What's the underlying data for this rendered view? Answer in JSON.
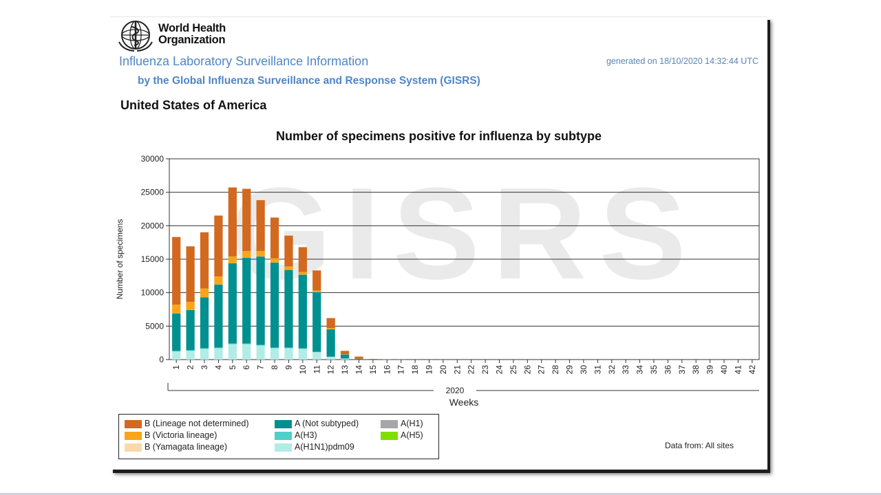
{
  "header": {
    "org_line1": "World Health",
    "org_line2": "Organization",
    "title": "Influenza Laboratory Surveillance Information",
    "subtitle": "by the Global Influenza Surveillance and Response System (GISRS)",
    "generated": "generated on 18/10/2020 14:32:44 UTC",
    "country": "United States of America"
  },
  "footer": {
    "data_from": "Data from: All sites"
  },
  "chart_data": {
    "type": "bar",
    "stacked": true,
    "title": "Number of specimens positive for influenza by subtype",
    "xlabel": "Weeks",
    "ylabel": "Number of specimens",
    "year_label": "2020",
    "watermark": "GISRS",
    "ylim": [
      0,
      30000
    ],
    "yticks": [
      "0",
      "5000",
      "10000",
      "15000",
      "20000",
      "25000",
      "30000"
    ],
    "grid": true,
    "categories": [
      "1",
      "2",
      "3",
      "4",
      "5",
      "6",
      "7",
      "8",
      "9",
      "10",
      "11",
      "12",
      "13",
      "14",
      "15",
      "16",
      "17",
      "18",
      "19",
      "20",
      "21",
      "22",
      "23",
      "24",
      "25",
      "26",
      "27",
      "28",
      "29",
      "30",
      "31",
      "32",
      "33",
      "34",
      "35",
      "36",
      "37",
      "38",
      "39",
      "40",
      "41",
      "42"
    ],
    "series": [
      {
        "name": "A(H1N1)pdm09",
        "color": "#b2ece6",
        "values": [
          1200,
          1300,
          1600,
          1700,
          2300,
          2300,
          2100,
          1700,
          1700,
          1600,
          1100,
          400,
          150,
          30,
          10,
          5,
          0,
          0,
          0,
          0,
          0,
          0,
          0,
          0,
          0,
          0,
          0,
          0,
          0,
          0,
          0,
          0,
          0,
          0,
          0,
          0,
          0,
          0,
          0,
          0,
          0,
          0
        ]
      },
      {
        "name": "A(H3)",
        "color": "#4dd0c8",
        "values": [
          100,
          100,
          100,
          100,
          100,
          100,
          100,
          100,
          100,
          80,
          60,
          30,
          10,
          5,
          0,
          0,
          0,
          0,
          0,
          0,
          0,
          0,
          0,
          0,
          0,
          0,
          0,
          0,
          0,
          0,
          0,
          0,
          0,
          0,
          0,
          0,
          0,
          0,
          0,
          0,
          0,
          0
        ]
      },
      {
        "name": "A (Not subtyped)",
        "color": "#009090",
        "values": [
          5600,
          6000,
          7600,
          9400,
          12000,
          12800,
          13200,
          12700,
          11600,
          11000,
          8900,
          4100,
          600,
          100,
          30,
          10,
          5,
          0,
          0,
          0,
          0,
          0,
          0,
          0,
          0,
          0,
          0,
          0,
          0,
          0,
          0,
          0,
          0,
          0,
          0,
          0,
          0,
          0,
          0,
          0,
          0,
          0
        ]
      },
      {
        "name": "A(H1)",
        "color": "#a6a6a6",
        "values": [
          0,
          0,
          0,
          0,
          0,
          0,
          0,
          0,
          0,
          0,
          0,
          0,
          0,
          0,
          0,
          0,
          0,
          0,
          0,
          0,
          0,
          0,
          0,
          0,
          0,
          0,
          0,
          0,
          0,
          0,
          0,
          0,
          0,
          0,
          0,
          0,
          0,
          0,
          0,
          0,
          0,
          0
        ]
      },
      {
        "name": "A(H5)",
        "color": "#7fe000",
        "values": [
          0,
          0,
          0,
          0,
          0,
          0,
          0,
          0,
          0,
          0,
          0,
          0,
          0,
          0,
          0,
          0,
          0,
          0,
          0,
          0,
          0,
          0,
          0,
          0,
          0,
          0,
          0,
          0,
          0,
          0,
          0,
          0,
          0,
          0,
          0,
          0,
          0,
          0,
          0,
          0,
          0,
          0
        ]
      },
      {
        "name": "B (Yamagata lineage)",
        "color": "#fcd9a8",
        "values": [
          20,
          20,
          20,
          20,
          20,
          20,
          20,
          20,
          20,
          20,
          10,
          10,
          0,
          0,
          0,
          0,
          0,
          0,
          0,
          0,
          0,
          0,
          0,
          0,
          0,
          0,
          0,
          0,
          0,
          0,
          0,
          0,
          0,
          0,
          0,
          0,
          0,
          0,
          0,
          0,
          0,
          0
        ]
      },
      {
        "name": "B (Victoria lineage)",
        "color": "#f9a51a",
        "values": [
          1300,
          1200,
          1300,
          1200,
          1000,
          1000,
          800,
          600,
          500,
          400,
          250,
          150,
          40,
          10,
          0,
          0,
          0,
          0,
          0,
          0,
          0,
          0,
          0,
          0,
          0,
          0,
          0,
          0,
          0,
          0,
          0,
          0,
          0,
          0,
          0,
          0,
          0,
          0,
          0,
          0,
          0,
          0
        ]
      },
      {
        "name": "B (Lineage not determined)",
        "color": "#d2691e",
        "values": [
          10100,
          8300,
          8400,
          9100,
          10300,
          9300,
          7600,
          6100,
          4600,
          3700,
          3000,
          1510,
          500,
          300,
          50,
          30,
          20,
          10,
          5,
          5,
          0,
          0,
          0,
          0,
          0,
          0,
          0,
          0,
          0,
          0,
          0,
          0,
          0,
          0,
          0,
          0,
          0,
          0,
          0,
          0,
          0,
          0
        ]
      }
    ],
    "legend": {
      "placement": "bottom-left",
      "columns": [
        [
          "B (Lineage not determined)",
          "B (Victoria lineage)",
          "B (Yamagata lineage)"
        ],
        [
          "A (Not subtyped)",
          "A(H3)",
          "A(H1N1)pdm09"
        ],
        [
          "A(H1)",
          "A(H5)"
        ]
      ]
    }
  }
}
